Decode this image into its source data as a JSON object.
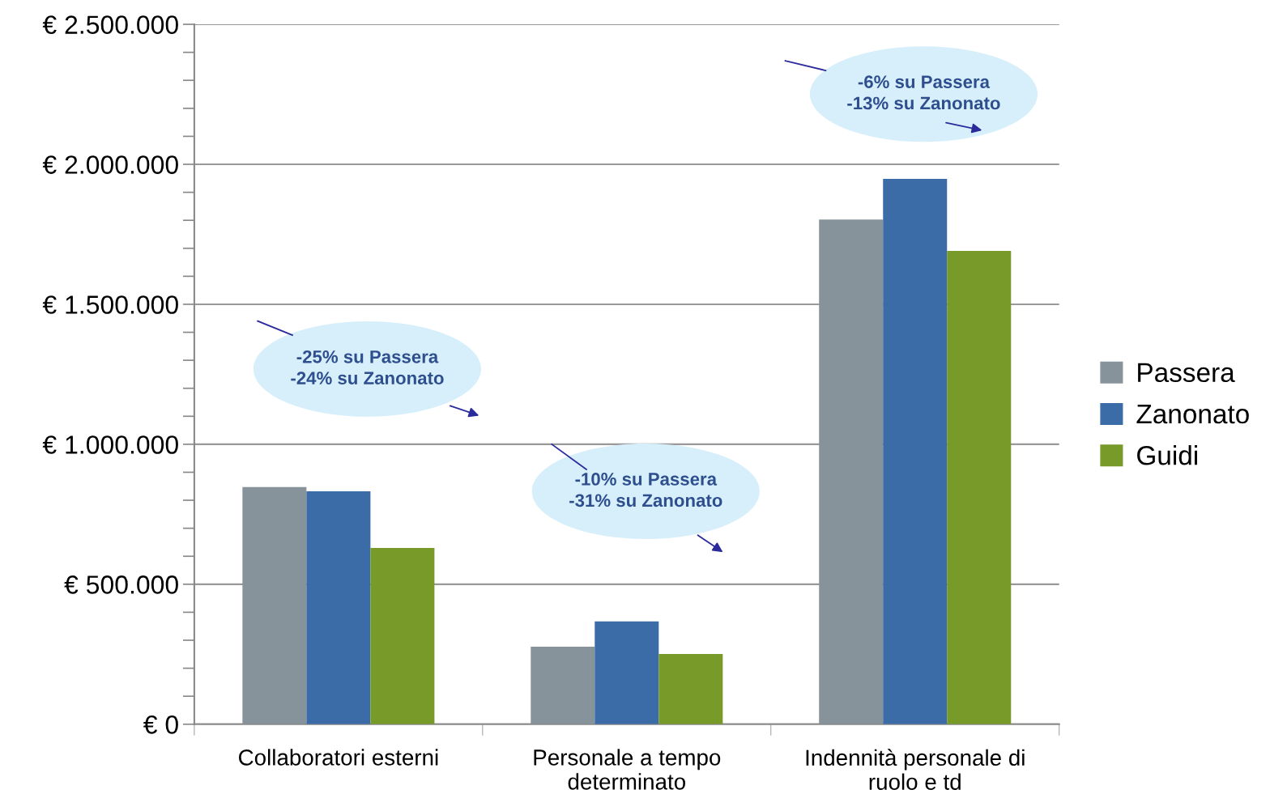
{
  "chart_data": {
    "type": "bar",
    "categories": [
      "Collaboratori esterni",
      "Personale a tempo\ndeterminato",
      "Indennità personale di\nruolo e td"
    ],
    "series": [
      {
        "name": "Passera",
        "color": "#87939a",
        "values": [
          847000,
          277000,
          1803000
        ]
      },
      {
        "name": "Zanonato",
        "color": "#3b6ca8",
        "values": [
          832000,
          367000,
          1948000
        ]
      },
      {
        "name": "Guidi",
        "color": "#779a28",
        "values": [
          630000,
          251000,
          1691000
        ]
      }
    ],
    "ylim": [
      0,
      2500000
    ],
    "yticks": [
      {
        "value": 0,
        "label": "€ 0"
      },
      {
        "value": 100000,
        "label": null
      },
      {
        "value": 200000,
        "label": null
      },
      {
        "value": 300000,
        "label": null
      },
      {
        "value": 400000,
        "label": null
      },
      {
        "value": 500000,
        "label": "€ 500.000"
      },
      {
        "value": 600000,
        "label": null
      },
      {
        "value": 700000,
        "label": null
      },
      {
        "value": 800000,
        "label": null
      },
      {
        "value": 900000,
        "label": null
      },
      {
        "value": 1000000,
        "label": "€ 1.000.000"
      },
      {
        "value": 1100000,
        "label": null
      },
      {
        "value": 1200000,
        "label": null
      },
      {
        "value": 1300000,
        "label": null
      },
      {
        "value": 1400000,
        "label": null
      },
      {
        "value": 1500000,
        "label": "€ 1.500.000"
      },
      {
        "value": 1600000,
        "label": null
      },
      {
        "value": 1700000,
        "label": null
      },
      {
        "value": 1800000,
        "label": null
      },
      {
        "value": 1900000,
        "label": null
      },
      {
        "value": 2000000,
        "label": "€ 2.000.000"
      },
      {
        "value": 2100000,
        "label": null
      },
      {
        "value": 2200000,
        "label": null
      },
      {
        "value": 2300000,
        "label": null
      },
      {
        "value": 2400000,
        "label": null
      },
      {
        "value": 2500000,
        "label": "€ 2.500.000"
      }
    ],
    "grid": "y",
    "legend": "right",
    "annotations": [
      "-25% su Passera\n-24% su Zanonato",
      "-10% su Passera\n-31% su Zanonato",
      "-6% su Passera\n-13% su Zanonato"
    ]
  }
}
